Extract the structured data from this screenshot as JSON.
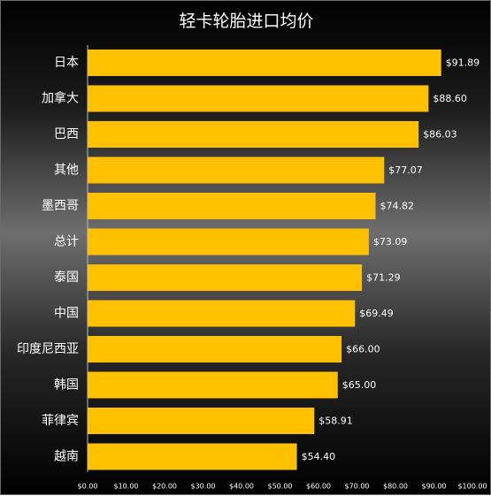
{
  "chart_data": {
    "type": "bar",
    "orientation": "horizontal",
    "title": "轻卡轮胎进口均价",
    "categories": [
      "日本",
      "加拿大",
      "巴西",
      "其他",
      "墨西哥",
      "总计",
      "泰国",
      "中国",
      "印度尼西亚",
      "韩国",
      "菲律宾",
      "越南"
    ],
    "values": [
      91.89,
      88.6,
      86.03,
      77.07,
      74.82,
      73.09,
      71.29,
      69.49,
      66.0,
      65.0,
      58.91,
      54.4
    ],
    "value_labels": [
      "$91.89",
      "$88.60",
      "$86.03",
      "$77.07",
      "$74.82",
      "$73.09",
      "$71.29",
      "$69.49",
      "$66.00",
      "$65.00",
      "$58.91",
      "$54.40"
    ],
    "xlim": [
      0,
      100
    ],
    "x_ticks": [
      0,
      10,
      20,
      30,
      40,
      50,
      60,
      70,
      80,
      90,
      100
    ],
    "x_tick_labels": [
      "$0.00",
      "$10.00",
      "$20.00",
      "$30.00",
      "$40.00",
      "$50.00",
      "$60.00",
      "$70.00",
      "$80.00",
      "$90.00",
      "$100.00"
    ],
    "xlabel": "",
    "ylabel": "",
    "grid": false,
    "legend": "none",
    "bar_color": "#FFC000",
    "text_color": "#FFFFFF"
  }
}
